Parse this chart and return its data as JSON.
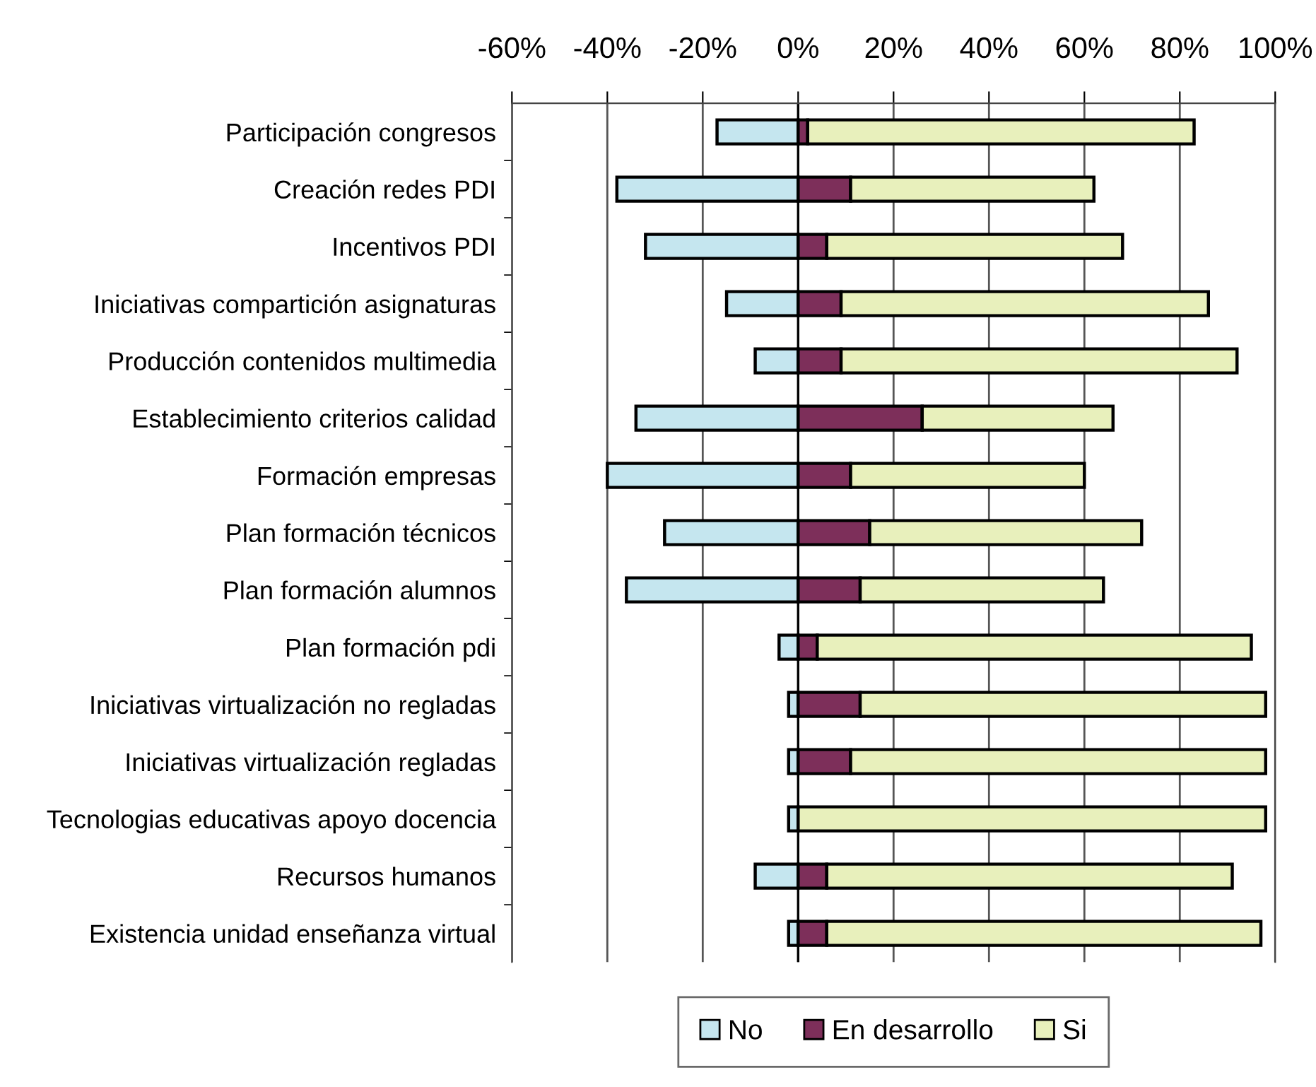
{
  "chart_data": {
    "type": "bar",
    "orientation": "horizontal",
    "stacked": true,
    "categories": [
      "Participación congresos",
      "Creación redes PDI",
      "Incentivos PDI",
      "Iniciativas compartición asignaturas",
      "Producción contenidos multimedia",
      "Establecimiento criterios calidad",
      "Formación empresas",
      "Plan formación técnicos",
      "Plan formación alumnos",
      "Plan formación pdi",
      "Iniciativas virtualización no regladas",
      "Iniciativas virtualización regladas",
      "Tecnologias educativas apoyo docencia",
      "Recursos humanos",
      "Existencia unidad enseñanza virtual"
    ],
    "series": [
      {
        "name": "No",
        "color": "#c5e6ef",
        "values": [
          -17,
          -38,
          -32,
          -15,
          -9,
          -34,
          -40,
          -28,
          -36,
          -4,
          -2,
          -2,
          -2,
          -9,
          -2
        ]
      },
      {
        "name": "En desarrollo",
        "color": "#7d2f5a",
        "values": [
          2,
          11,
          6,
          9,
          9,
          26,
          11,
          15,
          13,
          4,
          13,
          11,
          0,
          6,
          6
        ]
      },
      {
        "name": "Si",
        "color": "#e8f0bc",
        "values": [
          81,
          51,
          62,
          77,
          83,
          40,
          49,
          57,
          51,
          91,
          85,
          87,
          98,
          85,
          91
        ]
      }
    ],
    "xlim": [
      -60,
      100
    ],
    "xticks": [
      {
        "value": -60,
        "label": "-60%"
      },
      {
        "value": -40,
        "label": "-40%"
      },
      {
        "value": -20,
        "label": "-20%"
      },
      {
        "value": 0,
        "label": "0%"
      },
      {
        "value": 20,
        "label": "20%"
      },
      {
        "value": 40,
        "label": "40%"
      },
      {
        "value": 60,
        "label": "60%"
      },
      {
        "value": 80,
        "label": "80%"
      },
      {
        "value": 100,
        "label": "100%"
      }
    ],
    "grid": "x",
    "legend": "bottom"
  }
}
